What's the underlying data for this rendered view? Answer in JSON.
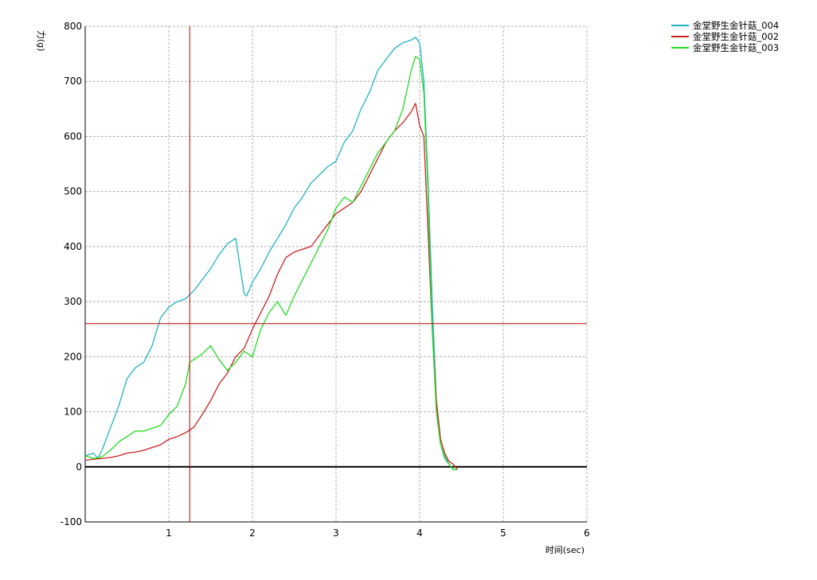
{
  "chart_data": {
    "type": "line",
    "xlabel": "时间(sec)",
    "ylabel": "力(g)",
    "xlim": [
      0,
      6
    ],
    "ylim": [
      -100,
      800
    ],
    "x_ticks": [
      "1",
      "2",
      "3",
      "4",
      "5",
      "6"
    ],
    "y_ticks": [
      "800",
      "700",
      "600",
      "500",
      "400",
      "300",
      "200",
      "100",
      "0",
      "-100"
    ],
    "grid": true,
    "legend_position": "top-right",
    "cursor": {
      "x": 1.25,
      "y": 260,
      "color": "#c00000"
    },
    "series": [
      {
        "name": "金堂野生金针菇_004",
        "color": "#1fb3c2",
        "x": [
          0.0,
          0.1,
          0.15,
          0.2,
          0.3,
          0.4,
          0.5,
          0.6,
          0.7,
          0.8,
          0.9,
          1.0,
          1.1,
          1.2,
          1.3,
          1.4,
          1.5,
          1.6,
          1.7,
          1.8,
          1.9,
          1.93,
          2.0,
          2.1,
          2.2,
          2.3,
          2.4,
          2.5,
          2.6,
          2.7,
          2.8,
          2.9,
          3.0,
          3.1,
          3.2,
          3.3,
          3.4,
          3.5,
          3.6,
          3.7,
          3.8,
          3.9,
          3.95,
          4.0,
          4.05,
          4.1,
          4.15,
          4.2,
          4.25,
          4.3,
          4.35,
          4.4,
          4.45
        ],
        "values": [
          20,
          25,
          15,
          30,
          70,
          110,
          160,
          180,
          190,
          220,
          270,
          290,
          300,
          305,
          320,
          340,
          360,
          385,
          405,
          415,
          315,
          310,
          335,
          360,
          390,
          415,
          440,
          470,
          490,
          515,
          530,
          545,
          555,
          590,
          610,
          650,
          680,
          720,
          740,
          760,
          770,
          775,
          780,
          770,
          700,
          520,
          300,
          120,
          40,
          15,
          5,
          -5,
          -5
        ]
      },
      {
        "name": "金堂野生金针菇_002",
        "color": "#cc2020",
        "x": [
          0.0,
          0.1,
          0.2,
          0.3,
          0.4,
          0.5,
          0.6,
          0.7,
          0.8,
          0.9,
          1.0,
          1.1,
          1.2,
          1.3,
          1.4,
          1.5,
          1.6,
          1.7,
          1.8,
          1.9,
          2.0,
          2.1,
          2.2,
          2.3,
          2.4,
          2.5,
          2.6,
          2.7,
          2.8,
          2.9,
          3.0,
          3.1,
          3.2,
          3.3,
          3.4,
          3.5,
          3.6,
          3.7,
          3.8,
          3.9,
          3.95,
          4.0,
          4.05,
          4.1,
          4.15,
          4.2,
          4.25,
          4.3,
          4.35,
          4.4,
          4.45
        ],
        "values": [
          12,
          14,
          15,
          17,
          20,
          25,
          27,
          30,
          35,
          40,
          50,
          55,
          62,
          72,
          95,
          120,
          150,
          170,
          200,
          215,
          250,
          280,
          310,
          350,
          380,
          390,
          395,
          400,
          420,
          440,
          460,
          470,
          480,
          500,
          530,
          560,
          590,
          610,
          625,
          645,
          660,
          620,
          600,
          430,
          250,
          120,
          50,
          25,
          10,
          5,
          -5
        ]
      },
      {
        "name": "金堂野生金针菇_003",
        "color": "#22dd22",
        "x": [
          0.0,
          0.1,
          0.2,
          0.3,
          0.4,
          0.5,
          0.6,
          0.7,
          0.8,
          0.9,
          1.0,
          1.1,
          1.2,
          1.25,
          1.3,
          1.4,
          1.5,
          1.6,
          1.7,
          1.8,
          1.9,
          2.0,
          2.1,
          2.2,
          2.3,
          2.4,
          2.5,
          2.6,
          2.7,
          2.8,
          2.9,
          3.0,
          3.1,
          3.2,
          3.3,
          3.4,
          3.5,
          3.6,
          3.7,
          3.8,
          3.9,
          3.95,
          4.0,
          4.05,
          4.1,
          4.15,
          4.2,
          4.25,
          4.3,
          4.35,
          4.4,
          4.45
        ],
        "values": [
          20,
          15,
          18,
          30,
          45,
          55,
          65,
          65,
          70,
          75,
          95,
          110,
          150,
          190,
          195,
          205,
          220,
          195,
          175,
          190,
          210,
          200,
          250,
          280,
          300,
          275,
          310,
          340,
          370,
          400,
          430,
          470,
          490,
          480,
          510,
          540,
          570,
          590,
          610,
          650,
          720,
          745,
          740,
          680,
          500,
          250,
          100,
          40,
          20,
          5,
          -5,
          -5
        ]
      }
    ]
  }
}
